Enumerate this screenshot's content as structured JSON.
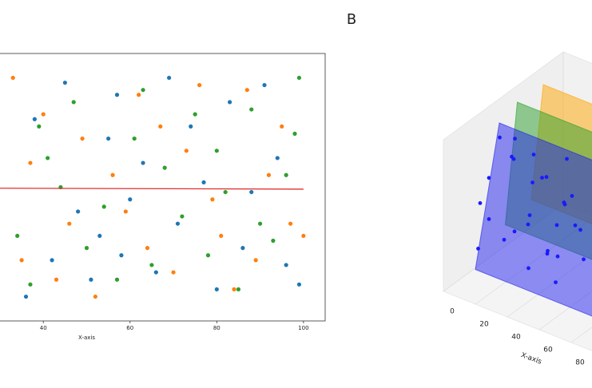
{
  "chart_data": [
    {
      "type": "scatter",
      "xlabel": "X-axis",
      "xlim": [
        -5,
        105
      ],
      "ylim": [
        -5,
        105
      ],
      "xticks": [
        40,
        60,
        80,
        100
      ],
      "series": [
        {
          "color": "#1f77b4",
          "x": [
            36,
            38,
            42,
            45,
            48,
            51,
            53,
            55,
            57,
            58,
            60,
            63,
            66,
            69,
            71,
            74,
            77,
            80,
            83,
            86,
            88,
            91,
            94,
            96,
            99
          ],
          "values": [
            5,
            78,
            20,
            93,
            40,
            12,
            30,
            70,
            88,
            22,
            45,
            60,
            15,
            95,
            35,
            75,
            52,
            8,
            85,
            25,
            48,
            92,
            62,
            18,
            10
          ]
        },
        {
          "color": "#ff7f0e",
          "x": [
            33,
            35,
            37,
            40,
            43,
            46,
            49,
            52,
            56,
            59,
            62,
            64,
            67,
            70,
            73,
            76,
            79,
            81,
            84,
            87,
            89,
            92,
            95,
            97,
            100
          ],
          "values": [
            95,
            20,
            60,
            80,
            12,
            35,
            70,
            5,
            55,
            40,
            88,
            25,
            75,
            15,
            65,
            92,
            45,
            30,
            8,
            90,
            20,
            55,
            75,
            35,
            30
          ]
        },
        {
          "color": "#2ca02c",
          "x": [
            34,
            37,
            39,
            41,
            44,
            47,
            50,
            54,
            57,
            61,
            63,
            65,
            68,
            72,
            75,
            78,
            80,
            82,
            85,
            88,
            90,
            93,
            96,
            98,
            99
          ],
          "values": [
            30,
            10,
            75,
            62,
            50,
            85,
            25,
            42,
            12,
            70,
            90,
            18,
            58,
            38,
            80,
            22,
            65,
            48,
            8,
            82,
            35,
            28,
            55,
            72,
            95
          ]
        }
      ],
      "lines": [
        {
          "color": "#e03030",
          "x": [
            -5,
            100
          ],
          "values": [
            49.8,
            49.2
          ]
        }
      ]
    },
    {
      "type": "scatter3d",
      "panel_label": "B",
      "xlabel": "X-axis",
      "xlim": [
        0,
        100
      ],
      "ylim": [
        0,
        100
      ],
      "zlim": [
        0,
        100
      ],
      "xticks": [
        0,
        20,
        40,
        60,
        80
      ],
      "planes": [
        {
          "color": "#ffa500",
          "corners": [
            [
              10,
              60,
              30
            ],
            [
              10,
              70,
              100
            ],
            [
              100,
              70,
              100
            ],
            [
              100,
              60,
              30
            ]
          ]
        },
        {
          "color": "#2ca02c",
          "corners": [
            [
              5,
              45,
              20
            ],
            [
              5,
              55,
              95
            ],
            [
              100,
              55,
              95
            ],
            [
              100,
              45,
              20
            ]
          ]
        },
        {
          "color": "#2222ee",
          "corners": [
            [
              5,
              20,
              5
            ],
            [
              5,
              40,
              90
            ],
            [
              100,
              40,
              90
            ],
            [
              100,
              20,
              5
            ]
          ]
        }
      ],
      "points": {
        "color": "#1a1aff",
        "x": [
          3,
          6,
          9,
          12,
          14,
          17,
          20,
          22,
          25,
          28,
          30,
          33,
          35,
          38,
          40,
          43,
          45,
          48,
          50,
          53,
          55,
          58,
          60,
          63,
          65,
          8,
          18,
          27,
          37,
          47
        ],
        "y": [
          25,
          30,
          35,
          22,
          40,
          28,
          33,
          45,
          26,
          38,
          31,
          42,
          24,
          36,
          29,
          44,
          27,
          39,
          34,
          23,
          41,
          30,
          37,
          26,
          43,
          20,
          48,
          21,
          46,
          32
        ],
        "z": [
          15,
          60,
          85,
          40,
          70,
          25,
          90,
          55,
          35,
          80,
          10,
          65,
          45,
          20,
          75,
          50,
          30,
          85,
          60,
          15,
          40,
          70,
          25,
          55,
          80,
          50,
          30,
          88,
          12,
          45
        ]
      }
    }
  ]
}
